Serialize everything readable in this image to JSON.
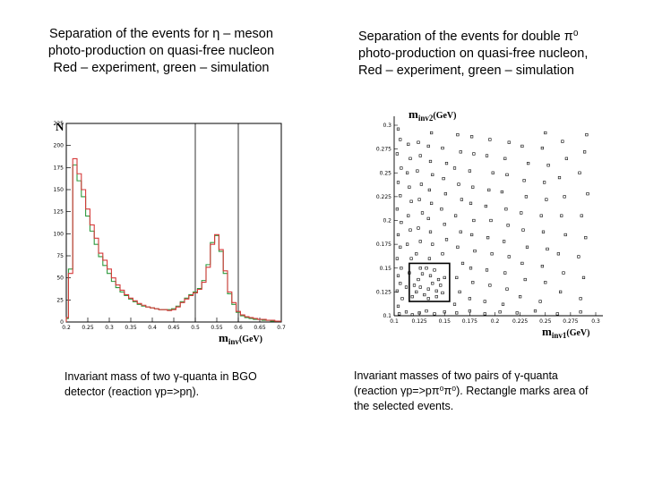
{
  "left_heading": [
    "Separation of the events for η – meson",
    "photo-production on quasi-free nucleon",
    "Red – experiment, green – simulation"
  ],
  "right_heading": [
    "Separation of the events for double π⁰",
    "photo-production on quasi-free nucleon,",
    "Red – experiment, green – simulation"
  ],
  "left_caption": [
    "Invariant mass of two γ-quanta in BGO",
    "detector (reaction γp=>pη)."
  ],
  "right_caption": [
    "Invariant masses of two pairs of γ-quanta",
    "(reaction γp=>pπ⁰π⁰). Rectangle marks area of",
    "the selected events."
  ],
  "chart_data": [
    {
      "type": "line",
      "ylabel": "N",
      "xlabel_main": "m",
      "xlabel_sub": "inv",
      "xlabel_unit": "(GeV)",
      "xlim": [
        0.2,
        0.7
      ],
      "ylim": [
        0,
        225
      ],
      "x_ticks": [
        "0.2",
        "0.25",
        "0.3",
        "0.35",
        "0.4",
        "0.45",
        "0.5",
        "0.55",
        "0.6",
        "0.65",
        "0.7"
      ],
      "y_ticks": [
        "0",
        "25",
        "50",
        "75",
        "100",
        "125",
        "150",
        "175",
        "200",
        "225"
      ],
      "selection_lines": [
        0.5,
        0.6
      ],
      "colors": {
        "experiment": "#d63a3a",
        "simulation": "#2e9a3e",
        "selection": "#000000"
      },
      "series": [
        {
          "key": "experiment",
          "x": [
            0.2,
            0.21,
            0.22,
            0.23,
            0.24,
            0.25,
            0.26,
            0.27,
            0.28,
            0.29,
            0.3,
            0.31,
            0.32,
            0.33,
            0.34,
            0.35,
            0.36,
            0.37,
            0.38,
            0.39,
            0.4,
            0.41,
            0.42,
            0.43,
            0.44,
            0.45,
            0.46,
            0.47,
            0.48,
            0.49,
            0.5,
            0.51,
            0.52,
            0.53,
            0.54,
            0.55,
            0.56,
            0.57,
            0.58,
            0.59,
            0.6,
            0.61,
            0.62,
            0.63,
            0.64,
            0.65,
            0.66,
            0.67,
            0.68,
            0.69,
            0.7
          ],
          "y": [
            5,
            55,
            185,
            168,
            150,
            128,
            110,
            95,
            78,
            70,
            60,
            50,
            42,
            36,
            31,
            27,
            24,
            21,
            19,
            17,
            16,
            15,
            14,
            14,
            13,
            14,
            17,
            22,
            26,
            30,
            33,
            37,
            45,
            62,
            88,
            99,
            82,
            58,
            34,
            22,
            12,
            8,
            6,
            5,
            4,
            3,
            3,
            2,
            2,
            1,
            1
          ]
        },
        {
          "key": "simulation",
          "x": [
            0.2,
            0.21,
            0.22,
            0.23,
            0.24,
            0.25,
            0.26,
            0.27,
            0.28,
            0.29,
            0.3,
            0.31,
            0.32,
            0.33,
            0.34,
            0.35,
            0.36,
            0.37,
            0.38,
            0.39,
            0.4,
            0.41,
            0.42,
            0.43,
            0.44,
            0.45,
            0.46,
            0.47,
            0.48,
            0.49,
            0.5,
            0.51,
            0.52,
            0.53,
            0.54,
            0.55,
            0.56,
            0.57,
            0.58,
            0.59,
            0.6,
            0.61,
            0.62,
            0.63,
            0.64,
            0.65,
            0.66,
            0.67,
            0.68,
            0.69,
            0.7
          ],
          "y": [
            4,
            60,
            178,
            160,
            142,
            120,
            103,
            88,
            74,
            64,
            55,
            46,
            39,
            34,
            30,
            26,
            23,
            20,
            18,
            17,
            16,
            15,
            14,
            14,
            14,
            15,
            18,
            23,
            27,
            31,
            34,
            38,
            47,
            65,
            90,
            98,
            80,
            55,
            32,
            20,
            11,
            7,
            5,
            4,
            3,
            3,
            2,
            2,
            1,
            1,
            1
          ]
        }
      ]
    },
    {
      "type": "scatter",
      "ylabel_main": "m",
      "ylabel_sub": "inv2",
      "ylabel_unit": "(GeV)",
      "xlabel_main": "m",
      "xlabel_sub": "inv1",
      "xlabel_unit": "(GeV)",
      "xlim": [
        0.1,
        0.3
      ],
      "ylim": [
        0.1,
        0.3
      ],
      "x_ticks": [
        "0.1",
        "0.125",
        "0.15",
        "0.175",
        "0.2",
        "0.225",
        "0.25",
        "0.275",
        "0.3"
      ],
      "y_ticks": [
        "0.1",
        "0.125",
        "0.15",
        "0.175",
        "0.2",
        "0.225",
        "0.25",
        "0.275",
        "0.3"
      ],
      "selection_box": {
        "x": [
          0.115,
          0.155
        ],
        "y": [
          0.115,
          0.155
        ]
      },
      "points": [
        [
          0.105,
          0.102
        ],
        [
          0.112,
          0.104
        ],
        [
          0.118,
          0.101
        ],
        [
          0.125,
          0.103
        ],
        [
          0.132,
          0.105
        ],
        [
          0.14,
          0.102
        ],
        [
          0.15,
          0.104
        ],
        [
          0.162,
          0.103
        ],
        [
          0.175,
          0.105
        ],
        [
          0.19,
          0.102
        ],
        [
          0.205,
          0.104
        ],
        [
          0.222,
          0.103
        ],
        [
          0.24,
          0.105
        ],
        [
          0.262,
          0.102
        ],
        [
          0.285,
          0.104
        ],
        [
          0.104,
          0.11
        ],
        [
          0.108,
          0.118
        ],
        [
          0.103,
          0.126
        ],
        [
          0.106,
          0.134
        ],
        [
          0.104,
          0.142
        ],
        [
          0.107,
          0.15
        ],
        [
          0.103,
          0.16
        ],
        [
          0.106,
          0.172
        ],
        [
          0.104,
          0.185
        ],
        [
          0.107,
          0.198
        ],
        [
          0.103,
          0.212
        ],
        [
          0.106,
          0.226
        ],
        [
          0.104,
          0.24
        ],
        [
          0.107,
          0.255
        ],
        [
          0.103,
          0.27
        ],
        [
          0.106,
          0.285
        ],
        [
          0.104,
          0.296
        ],
        [
          0.118,
          0.12
        ],
        [
          0.122,
          0.125
        ],
        [
          0.126,
          0.13
        ],
        [
          0.13,
          0.122
        ],
        [
          0.134,
          0.128
        ],
        [
          0.138,
          0.134
        ],
        [
          0.142,
          0.126
        ],
        [
          0.146,
          0.132
        ],
        [
          0.15,
          0.14
        ],
        [
          0.124,
          0.138
        ],
        [
          0.128,
          0.144
        ],
        [
          0.132,
          0.15
        ],
        [
          0.136,
          0.142
        ],
        [
          0.14,
          0.148
        ],
        [
          0.144,
          0.138
        ],
        [
          0.12,
          0.132
        ],
        [
          0.148,
          0.124
        ],
        [
          0.126,
          0.15
        ],
        [
          0.134,
          0.118
        ],
        [
          0.142,
          0.12
        ],
        [
          0.112,
          0.13
        ],
        [
          0.115,
          0.145
        ],
        [
          0.117,
          0.16
        ],
        [
          0.113,
          0.175
        ],
        [
          0.116,
          0.19
        ],
        [
          0.114,
          0.205
        ],
        [
          0.117,
          0.22
        ],
        [
          0.115,
          0.235
        ],
        [
          0.113,
          0.25
        ],
        [
          0.116,
          0.265
        ],
        [
          0.114,
          0.28
        ],
        [
          0.122,
          0.165
        ],
        [
          0.126,
          0.178
        ],
        [
          0.124,
          0.192
        ],
        [
          0.128,
          0.208
        ],
        [
          0.125,
          0.222
        ],
        [
          0.127,
          0.238
        ],
        [
          0.123,
          0.252
        ],
        [
          0.126,
          0.268
        ],
        [
          0.124,
          0.282
        ],
        [
          0.135,
          0.16
        ],
        [
          0.138,
          0.175
        ],
        [
          0.136,
          0.188
        ],
        [
          0.134,
          0.202
        ],
        [
          0.137,
          0.218
        ],
        [
          0.135,
          0.232
        ],
        [
          0.138,
          0.248
        ],
        [
          0.136,
          0.262
        ],
        [
          0.134,
          0.278
        ],
        [
          0.137,
          0.292
        ],
        [
          0.148,
          0.165
        ],
        [
          0.152,
          0.18
        ],
        [
          0.15,
          0.196
        ],
        [
          0.147,
          0.212
        ],
        [
          0.151,
          0.228
        ],
        [
          0.149,
          0.244
        ],
        [
          0.152,
          0.26
        ],
        [
          0.148,
          0.276
        ],
        [
          0.16,
          0.112
        ],
        [
          0.165,
          0.125
        ],
        [
          0.162,
          0.14
        ],
        [
          0.168,
          0.155
        ],
        [
          0.163,
          0.172
        ],
        [
          0.166,
          0.188
        ],
        [
          0.161,
          0.205
        ],
        [
          0.167,
          0.222
        ],
        [
          0.164,
          0.238
        ],
        [
          0.16,
          0.255
        ],
        [
          0.166,
          0.272
        ],
        [
          0.163,
          0.29
        ],
        [
          0.175,
          0.118
        ],
        [
          0.178,
          0.135
        ],
        [
          0.176,
          0.15
        ],
        [
          0.18,
          0.168
        ],
        [
          0.177,
          0.185
        ],
        [
          0.179,
          0.2
        ],
        [
          0.176,
          0.218
        ],
        [
          0.178,
          0.235
        ],
        [
          0.175,
          0.252
        ],
        [
          0.179,
          0.27
        ],
        [
          0.177,
          0.288
        ],
        [
          0.19,
          0.115
        ],
        [
          0.195,
          0.132
        ],
        [
          0.192,
          0.148
        ],
        [
          0.197,
          0.165
        ],
        [
          0.193,
          0.182
        ],
        [
          0.196,
          0.2
        ],
        [
          0.191,
          0.215
        ],
        [
          0.194,
          0.232
        ],
        [
          0.198,
          0.25
        ],
        [
          0.192,
          0.268
        ],
        [
          0.195,
          0.285
        ],
        [
          0.208,
          0.112
        ],
        [
          0.212,
          0.128
        ],
        [
          0.21,
          0.145
        ],
        [
          0.214,
          0.162
        ],
        [
          0.209,
          0.178
        ],
        [
          0.213,
          0.195
        ],
        [
          0.211,
          0.212
        ],
        [
          0.207,
          0.23
        ],
        [
          0.212,
          0.248
        ],
        [
          0.21,
          0.265
        ],
        [
          0.214,
          0.282
        ],
        [
          0.225,
          0.12
        ],
        [
          0.23,
          0.138
        ],
        [
          0.227,
          0.155
        ],
        [
          0.232,
          0.172
        ],
        [
          0.228,
          0.19
        ],
        [
          0.226,
          0.208
        ],
        [
          0.231,
          0.225
        ],
        [
          0.229,
          0.242
        ],
        [
          0.233,
          0.26
        ],
        [
          0.227,
          0.278
        ],
        [
          0.245,
          0.115
        ],
        [
          0.25,
          0.135
        ],
        [
          0.247,
          0.152
        ],
        [
          0.252,
          0.17
        ],
        [
          0.248,
          0.188
        ],
        [
          0.246,
          0.205
        ],
        [
          0.251,
          0.222
        ],
        [
          0.249,
          0.24
        ],
        [
          0.253,
          0.258
        ],
        [
          0.247,
          0.276
        ],
        [
          0.25,
          0.292
        ],
        [
          0.265,
          0.125
        ],
        [
          0.268,
          0.145
        ],
        [
          0.263,
          0.165
        ],
        [
          0.27,
          0.185
        ],
        [
          0.266,
          0.205
        ],
        [
          0.269,
          0.225
        ],
        [
          0.264,
          0.245
        ],
        [
          0.271,
          0.265
        ],
        [
          0.267,
          0.283
        ],
        [
          0.285,
          0.118
        ],
        [
          0.288,
          0.14
        ],
        [
          0.283,
          0.162
        ],
        [
          0.29,
          0.182
        ],
        [
          0.286,
          0.205
        ],
        [
          0.292,
          0.228
        ],
        [
          0.284,
          0.25
        ],
        [
          0.289,
          0.272
        ],
        [
          0.291,
          0.29
        ]
      ]
    }
  ]
}
